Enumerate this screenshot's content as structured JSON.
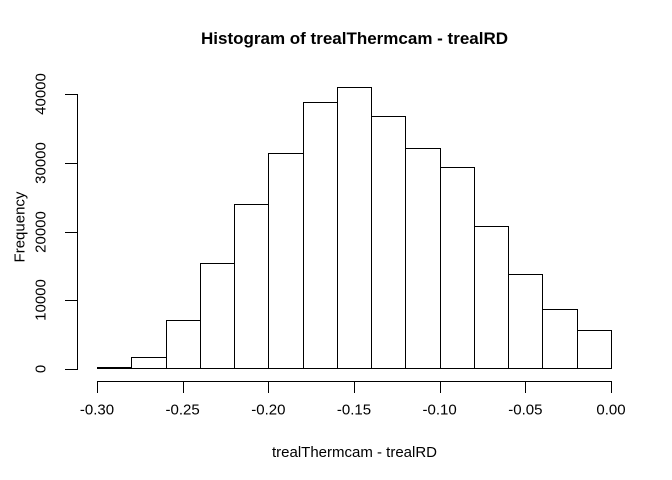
{
  "chart_data": {
    "type": "bar",
    "subtype": "histogram",
    "title": "Histogram of trealThermcam - trealRD",
    "xlabel": "trealThermcam - trealRD",
    "ylabel": "Frequency",
    "bin_edges": [
      -0.3,
      -0.28,
      -0.26,
      -0.24,
      -0.22,
      -0.2,
      -0.18,
      -0.16,
      -0.14,
      -0.12,
      -0.1,
      -0.08,
      -0.06,
      -0.04,
      -0.02,
      0.0
    ],
    "values": [
      250,
      1800,
      7200,
      15400,
      24000,
      31400,
      38900,
      41000,
      36800,
      32100,
      29400,
      20800,
      13800,
      8700,
      5700
    ],
    "x_ticks": [
      "-0.30",
      "-0.25",
      "-0.20",
      "-0.15",
      "-0.10",
      "-0.05",
      "0.00"
    ],
    "y_ticks": [
      "0",
      "10000",
      "20000",
      "30000",
      "40000"
    ],
    "xlim": [
      -0.3,
      0.0
    ],
    "ylim": [
      0,
      40000
    ],
    "grid": "off",
    "legend": "none",
    "bar_fill": "#ffffff",
    "bar_border": "#000000",
    "background": "#ffffff",
    "text_color": "#000000"
  }
}
